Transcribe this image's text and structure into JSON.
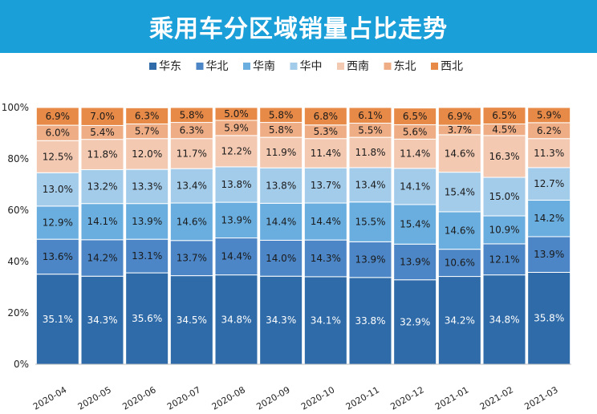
{
  "header": {
    "title": "乘用车分区域销量占比走势"
  },
  "colors": {
    "header_bg": "#1b9fd8",
    "series": [
      "#2f6ba8",
      "#4c86c6",
      "#6aaee0",
      "#a3cbea",
      "#f3c9b2",
      "#efad85",
      "#e88a47"
    ]
  },
  "chart_data": {
    "type": "bar",
    "stacked": true,
    "title": "乘用车分区域销量占比走势",
    "xlabel": "",
    "ylabel": "",
    "ylim": [
      0,
      100
    ],
    "y_ticks": [
      "0%",
      "20%",
      "40%",
      "60%",
      "80%",
      "100%"
    ],
    "legend_position": "top",
    "grid": false,
    "categories": [
      "2020-04",
      "2020-05",
      "2020-06",
      "2020-07",
      "2020-08",
      "2020-09",
      "2020-10",
      "2020-11",
      "2020-12",
      "2021-01",
      "2021-02",
      "2021-03"
    ],
    "series": [
      {
        "name": "华东",
        "values": [
          35.1,
          34.3,
          35.6,
          34.5,
          34.8,
          34.3,
          34.1,
          33.8,
          32.9,
          34.2,
          34.8,
          35.8
        ],
        "labels": [
          "35.1%",
          "34.3%",
          "35.6%",
          "34.5%",
          "34.8%",
          "34.3%",
          "34.1%",
          "33.8%",
          "32.9%",
          "34.2%",
          "34.8%",
          "35.8%"
        ]
      },
      {
        "name": "华北",
        "values": [
          13.6,
          14.2,
          13.1,
          13.7,
          14.4,
          14.0,
          14.3,
          13.9,
          13.9,
          10.6,
          12.1,
          13.9
        ],
        "labels": [
          "13.6%",
          "14.2%",
          "13.1%",
          "13.7%",
          "14.4%",
          "14.0%",
          "14.3%",
          "13.9%",
          "13.9%",
          "10.6%",
          "12.1%",
          "13.9%"
        ]
      },
      {
        "name": "华南",
        "values": [
          12.9,
          14.1,
          13.9,
          14.6,
          13.9,
          14.4,
          14.4,
          15.5,
          15.4,
          14.6,
          10.9,
          14.2
        ],
        "labels": [
          "12.9%",
          "14.1%",
          "13.9%",
          "14.6%",
          "13.9%",
          "14.4%",
          "14.4%",
          "15.5%",
          "15.4%",
          "14.6%",
          "10.9%",
          "14.2%"
        ]
      },
      {
        "name": "华中",
        "values": [
          13.0,
          13.2,
          13.3,
          13.4,
          13.8,
          13.8,
          13.7,
          13.4,
          14.1,
          15.4,
          15.0,
          12.7
        ],
        "labels": [
          "13.0%",
          "13.2%",
          "13.3%",
          "13.4%",
          "13.8%",
          "13.8%",
          "13.7%",
          "13.4%",
          "14.1%",
          "15.4%",
          "15.0%",
          "12.7%"
        ]
      },
      {
        "name": "西南",
        "values": [
          12.5,
          11.8,
          12.0,
          11.7,
          12.2,
          11.9,
          11.4,
          11.8,
          11.4,
          14.6,
          16.3,
          11.3
        ],
        "labels": [
          "12.5%",
          "11.8%",
          "12.0%",
          "11.7%",
          "12.2%",
          "11.9%",
          "11.4%",
          "11.8%",
          "11.4%",
          "14.6%",
          "16.3%",
          "11.3%"
        ]
      },
      {
        "name": "东北",
        "values": [
          6.0,
          5.4,
          5.7,
          6.3,
          5.9,
          5.8,
          5.3,
          5.5,
          5.6,
          3.7,
          4.5,
          6.2
        ],
        "labels": [
          "6.0%",
          "5.4%",
          "5.7%",
          "6.3%",
          "5.9%",
          "5.8%",
          "5.3%",
          "5.5%",
          "5.6%",
          "3.7%",
          "4.5%",
          "6.2%"
        ]
      },
      {
        "name": "西北",
        "values": [
          6.9,
          7.0,
          6.3,
          5.8,
          5.0,
          5.8,
          6.8,
          6.1,
          6.5,
          6.9,
          6.5,
          5.9
        ],
        "labels": [
          "6.9%",
          "7.0%",
          "6.3%",
          "5.8%",
          "5.0%",
          "5.8%",
          "6.8%",
          "6.1%",
          "6.5%",
          "6.9%",
          "6.5%",
          "5.9%"
        ]
      }
    ]
  }
}
